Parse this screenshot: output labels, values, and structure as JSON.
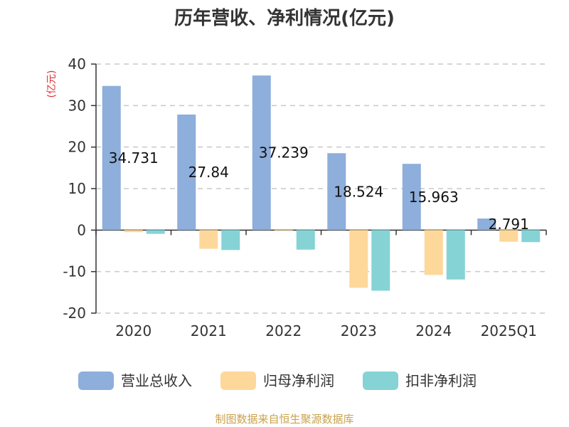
{
  "chart_data": {
    "type": "bar",
    "title": "历年营收、净利情况(亿元)",
    "y_unit": "(亿元)",
    "categories": [
      "2020",
      "2021",
      "2022",
      "2023",
      "2024",
      "2025Q1"
    ],
    "ylim": [
      -20,
      40
    ],
    "yticks": [
      -20,
      -10,
      0,
      10,
      20,
      30,
      40
    ],
    "grid": true,
    "legend_position": "bottom",
    "series": [
      {
        "name": "营业总收入",
        "color": "#8eaedb",
        "values": [
          34.731,
          27.84,
          37.239,
          18.524,
          15.963,
          2.791
        ]
      },
      {
        "name": "归母净利润",
        "color": "#fdd89a",
        "values": [
          -0.5,
          -4.5,
          -0.1,
          -13.9,
          -10.8,
          -2.8
        ]
      },
      {
        "name": "扣非净利润",
        "color": "#86d3d6",
        "values": [
          -0.9,
          -4.8,
          -4.7,
          -14.6,
          -11.9,
          -2.9
        ]
      }
    ],
    "data_labels": [
      "34.731",
      "27.84",
      "37.239",
      "18.524",
      "15.963",
      "2.791"
    ]
  },
  "source": "制图数据来自恒生聚源数据库"
}
